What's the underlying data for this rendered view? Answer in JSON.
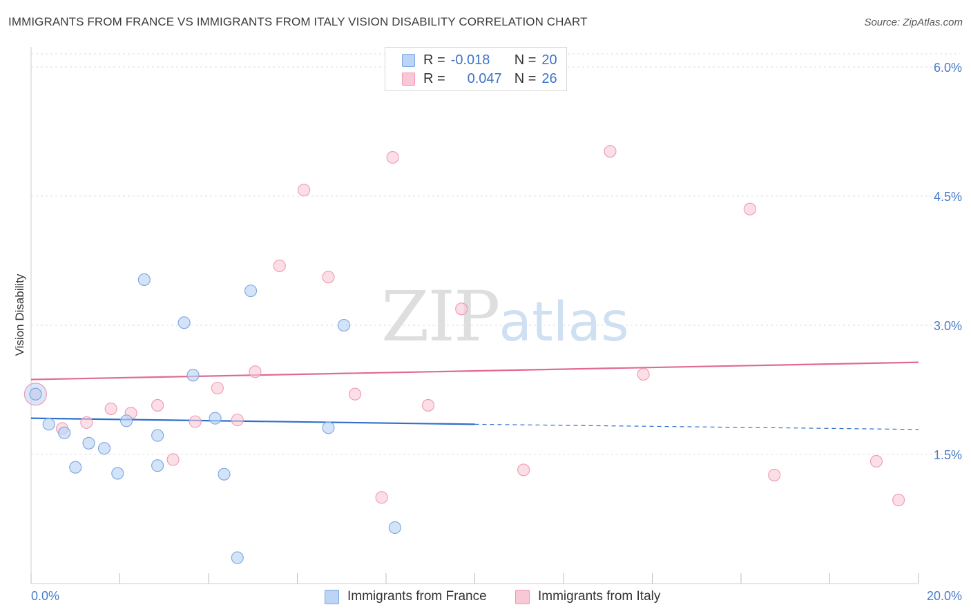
{
  "title": "IMMIGRANTS FROM FRANCE VS IMMIGRANTS FROM ITALY VISION DISABILITY CORRELATION CHART",
  "source": "Source: ZipAtlas.com",
  "watermark": {
    "zip": "ZIP",
    "atlas": "atlas"
  },
  "legend": {
    "france": {
      "r_label": "R =",
      "r_value": "-0.018",
      "n_label": "N =",
      "n_value": "20"
    },
    "italy": {
      "r_label": "R =",
      "r_value": "0.047",
      "n_label": "N =",
      "n_value": "26"
    }
  },
  "colors": {
    "france_fill": "#bcd4f5",
    "france_stroke": "#7aa5e0",
    "france_line": "#2f6fcb",
    "italy_fill": "#f9c8d6",
    "italy_stroke": "#ee9ab3",
    "italy_line": "#e06a92",
    "grid": "#dcdcdc",
    "tick_text": "#4a7cc9"
  },
  "chart_data": {
    "type": "scatter",
    "title": "IMMIGRANTS FROM FRANCE VS IMMIGRANTS FROM ITALY VISION DISABILITY CORRELATION CHART",
    "xlabel": "",
    "ylabel": "Vision Disability",
    "xlim": [
      0,
      20
    ],
    "ylim": [
      0,
      6.25
    ],
    "x_tick_labels": [
      "0.0%",
      "20.0%"
    ],
    "y_ticks": [
      1.5,
      3.0,
      4.5,
      6.0
    ],
    "y_tick_labels": [
      "1.5%",
      "3.0%",
      "4.5%",
      "6.0%"
    ],
    "grid": true,
    "legend_position": "top-center",
    "series": [
      {
        "name": "Immigrants from France",
        "points": [
          [
            0.1,
            2.2
          ],
          [
            0.4,
            1.85
          ],
          [
            0.75,
            1.75
          ],
          [
            1.0,
            1.35
          ],
          [
            1.3,
            1.63
          ],
          [
            1.65,
            1.57
          ],
          [
            1.95,
            1.28
          ],
          [
            2.15,
            1.89
          ],
          [
            2.55,
            3.53
          ],
          [
            2.85,
            1.37
          ],
          [
            2.85,
            1.72
          ],
          [
            3.45,
            3.03
          ],
          [
            3.65,
            2.42
          ],
          [
            4.15,
            1.92
          ],
          [
            4.35,
            1.27
          ],
          [
            4.65,
            0.3
          ],
          [
            4.95,
            3.4
          ],
          [
            6.7,
            1.81
          ],
          [
            7.05,
            3.0
          ],
          [
            8.2,
            0.65
          ]
        ],
        "trend": {
          "x": [
            0,
            10
          ],
          "y": [
            1.92,
            1.85
          ],
          "dashed_to": [
            20,
            1.79
          ]
        }
      },
      {
        "name": "Immigrants from Italy",
        "points": [
          [
            0.1,
            2.2
          ],
          [
            0.7,
            1.8
          ],
          [
            1.25,
            1.87
          ],
          [
            1.8,
            2.03
          ],
          [
            2.25,
            1.98
          ],
          [
            2.85,
            2.07
          ],
          [
            3.2,
            1.44
          ],
          [
            3.7,
            1.88
          ],
          [
            4.2,
            2.27
          ],
          [
            4.65,
            1.9
          ],
          [
            5.05,
            2.46
          ],
          [
            5.6,
            3.69
          ],
          [
            6.15,
            4.57
          ],
          [
            6.7,
            3.56
          ],
          [
            7.3,
            2.2
          ],
          [
            7.9,
            1.0
          ],
          [
            8.15,
            4.95
          ],
          [
            8.95,
            2.07
          ],
          [
            9.7,
            3.19
          ],
          [
            11.1,
            1.32
          ],
          [
            13.05,
            5.02
          ],
          [
            13.8,
            2.43
          ],
          [
            16.2,
            4.35
          ],
          [
            16.75,
            1.26
          ],
          [
            19.05,
            1.42
          ],
          [
            19.55,
            0.97
          ]
        ],
        "trend": {
          "x": [
            0,
            20
          ],
          "y": [
            2.37,
            2.57
          ]
        }
      }
    ]
  }
}
